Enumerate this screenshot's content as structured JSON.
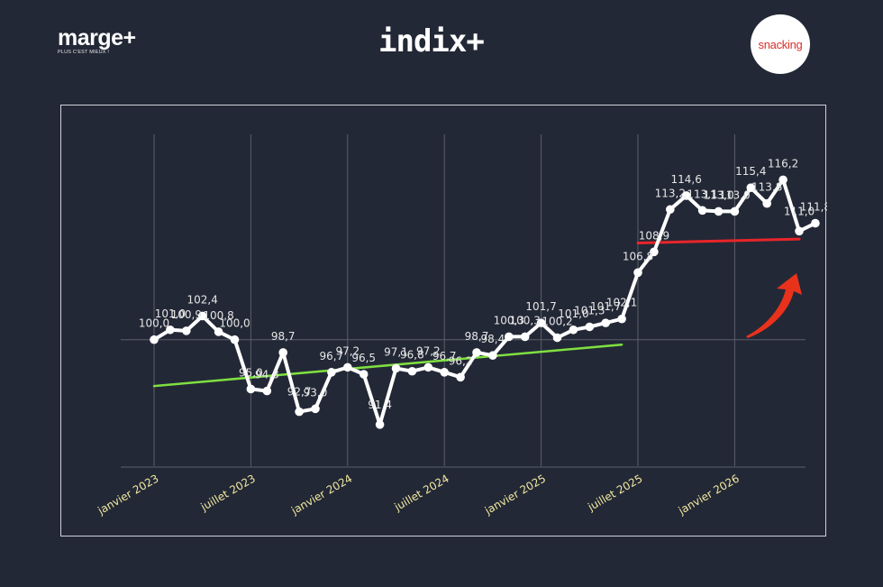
{
  "header": {
    "left_logo": {
      "word": "marge+",
      "tagline": "PLUS C'EST MIEUX !"
    },
    "center_logo": {
      "word": "indix+"
    },
    "right_logo": {
      "word": "snacking"
    }
  },
  "colors": {
    "background": "#232836",
    "series": "#ffffff",
    "trend_green": "#7fe040",
    "trend_red": "#e8252a",
    "arrow": "#e8321c",
    "tick_text": "#f2e9a0"
  },
  "chart_data": {
    "type": "line",
    "x_tick_labels": [
      "janvier 2023",
      "juillet 2023",
      "janvier 2024",
      "juillet 2024",
      "janvier 2025",
      "juillet 2025",
      "janvier 2026"
    ],
    "x_tick_index": [
      0,
      6,
      12,
      18,
      24,
      30,
      36
    ],
    "ylim": [
      87,
      123
    ],
    "reference_line": 100,
    "grid": "vertical",
    "series": [
      {
        "values": [
          100.0,
          101.0,
          100.9,
          102.4,
          100.8,
          100.0,
          95.0,
          94.8,
          98.7,
          92.7,
          93.0,
          96.7,
          97.2,
          96.5,
          91.4,
          97.1,
          96.8,
          97.2,
          96.7,
          96.2,
          98.7,
          98.4,
          100.3,
          100.3,
          101.7,
          100.2,
          101.0,
          101.3,
          101.7,
          102.1,
          106.8,
          108.9,
          113.2,
          114.6,
          113.1,
          113.0,
          113.0,
          115.4,
          113.8,
          116.2,
          111.0,
          111.8
        ],
        "labels": [
          "100,0",
          "101,0",
          "100,9",
          "102,4",
          "100,8",
          "100,0",
          "95,0",
          "94,8",
          "98,7",
          "92,7",
          "93,0",
          "96,7",
          "97,2",
          "96,5",
          "91,4",
          "97,1",
          "96,8",
          "97,2",
          "96,7",
          "96,2",
          "98,7",
          "98,4",
          "100,3",
          "100,3",
          "101,7",
          "100,2",
          "101,0",
          "101,3",
          "101,7",
          "102,1",
          "106,8",
          "108,9",
          "113,2",
          "114,6",
          "113,1",
          "113,0",
          "113,0",
          "115,4",
          "113,8",
          "116,2",
          "111,0",
          "111,8"
        ]
      }
    ],
    "trend_lines": [
      {
        "color": "green",
        "from": {
          "x": 0,
          "y": 95.3
        },
        "to": {
          "x": 29,
          "y": 99.5
        }
      },
      {
        "color": "red",
        "from": {
          "x": 30,
          "y": 109.8
        },
        "to": {
          "x": 40,
          "y": 110.2
        }
      }
    ],
    "annotation": "red upward arrow"
  }
}
